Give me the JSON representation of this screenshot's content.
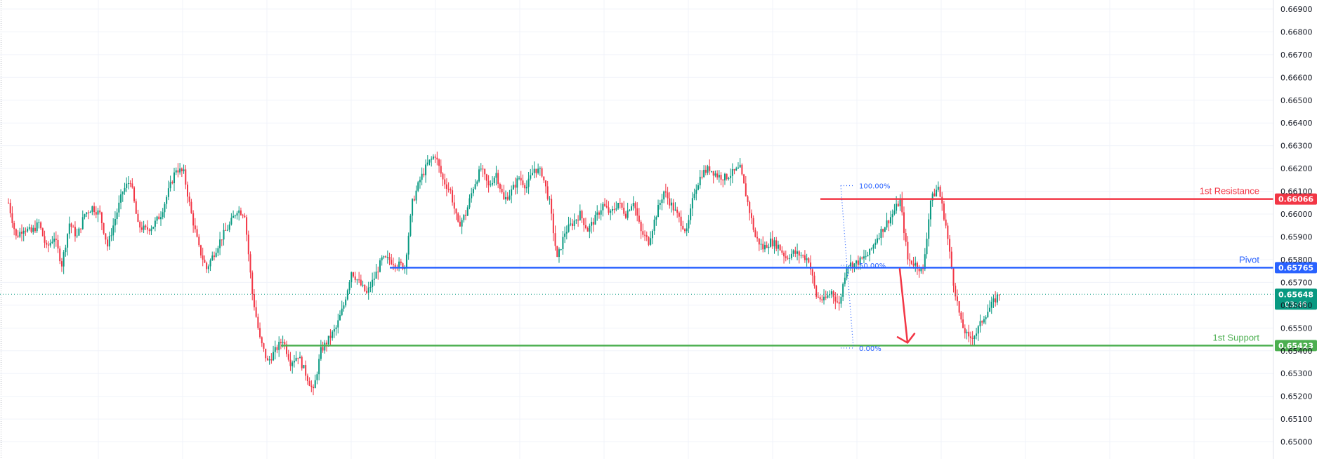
{
  "colors": {
    "up": "#089981",
    "down": "#f23645",
    "resistance": "#f23645",
    "pivot": "#2962ff",
    "support": "#4caf50",
    "current": "#089981",
    "grid": "#f0f3fa",
    "fib": "#2962ff",
    "arrow": "#f23645"
  },
  "chart_data": {
    "type": "candlestick",
    "ylim": [
      0.64968,
      0.66909
    ],
    "y_ticks": [
      "0.65000",
      "0.65100",
      "0.65200",
      "0.65300",
      "0.65400",
      "0.65500",
      "0.65600",
      "0.65700",
      "0.65800",
      "0.65900",
      "0.66000",
      "0.66100",
      "0.66200",
      "0.66300",
      "0.66400",
      "0.66500",
      "0.66600",
      "0.66700",
      "0.66800",
      "0.66900"
    ],
    "levels": [
      {
        "id": "resistance",
        "label": "1st Resistance",
        "value": 0.66066,
        "value_label": "0.66066",
        "color_key": "resistance"
      },
      {
        "id": "pivot",
        "label": "Pivot",
        "value": 0.65765,
        "value_label": "0.65765",
        "color_key": "pivot"
      },
      {
        "id": "support",
        "label": "1st Support",
        "value": 0.65423,
        "value_label": "0.65423",
        "color_key": "support"
      }
    ],
    "current_price": {
      "value": 0.65648,
      "value_label": "0.65648",
      "countdown": "03:46"
    },
    "fib": [
      {
        "label": "100.00%",
        "value": 0.66125
      },
      {
        "label": "50.00%",
        "value": 0.65775
      },
      {
        "label": "0.00%",
        "value": 0.65412
      }
    ],
    "price_path": [
      0.6605,
      0.659,
      0.6594,
      0.6592,
      0.6596,
      0.6585,
      0.659,
      0.6578,
      0.6596,
      0.659,
      0.66,
      0.6603,
      0.66,
      0.6586,
      0.6598,
      0.661,
      0.6615,
      0.6595,
      0.6593,
      0.6595,
      0.66,
      0.661,
      0.662,
      0.6618,
      0.66,
      0.6585,
      0.6576,
      0.6583,
      0.659,
      0.6595,
      0.6602,
      0.66,
      0.6565,
      0.6545,
      0.6535,
      0.654,
      0.6545,
      0.6535,
      0.6538,
      0.653,
      0.6522,
      0.654,
      0.6545,
      0.655,
      0.656,
      0.6575,
      0.657,
      0.6565,
      0.6572,
      0.658,
      0.658,
      0.6578,
      0.6577,
      0.6605,
      0.6615,
      0.6622,
      0.6626,
      0.6615,
      0.661,
      0.6595,
      0.66,
      0.6612,
      0.662,
      0.6612,
      0.6618,
      0.6606,
      0.661,
      0.6616,
      0.6612,
      0.662,
      0.6618,
      0.6605,
      0.658,
      0.6592,
      0.6596,
      0.66,
      0.6593,
      0.6598,
      0.6604,
      0.66,
      0.6605,
      0.66,
      0.6606,
      0.6592,
      0.6588,
      0.66,
      0.661,
      0.6604,
      0.6598,
      0.6592,
      0.661,
      0.6618,
      0.662,
      0.6617,
      0.6616,
      0.6618,
      0.662,
      0.6605,
      0.659,
      0.6585,
      0.6588,
      0.6586,
      0.6581,
      0.6583,
      0.6582,
      0.658,
      0.6564,
      0.6562,
      0.6566,
      0.656,
      0.6578,
      0.6578,
      0.658,
      0.6583,
      0.659,
      0.6595,
      0.66,
      0.6606,
      0.658,
      0.6578,
      0.6575,
      0.6606,
      0.6612,
      0.6595,
      0.657,
      0.6552,
      0.6545,
      0.6548,
      0.6555,
      0.656,
      0.6565
    ],
    "current_x_fraction": 0.7894
  }
}
